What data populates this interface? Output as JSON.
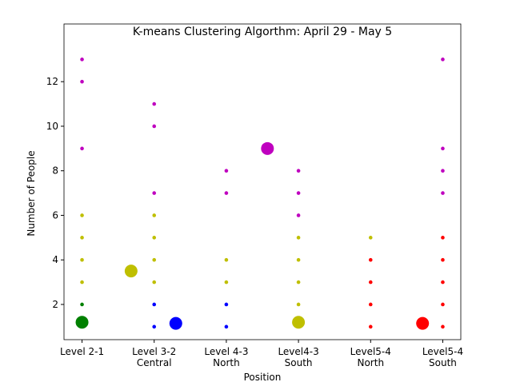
{
  "chart_data": {
    "type": "scatter",
    "title": "K-means Clustering Algorthm: April 29 - May 5",
    "x_label": "Position",
    "y_label": "Number of People",
    "xlim": [
      -0.25,
      5.25
    ],
    "ylim": [
      0.42,
      14.59
    ],
    "xticks": [
      {
        "value": 0,
        "label": "Level 2-1"
      },
      {
        "value": 1,
        "label": "Level 3-2\nCentral"
      },
      {
        "value": 2,
        "label": "Level 4-3\nNorth"
      },
      {
        "value": 3,
        "label": "Level4-3\nSouth"
      },
      {
        "value": 4,
        "label": "Level5-4\nNorth"
      },
      {
        "value": 5,
        "label": "Level5-4\nSouth"
      }
    ],
    "yticks": [
      2,
      4,
      6,
      8,
      10,
      12
    ],
    "series": [
      {
        "color": "#bf00bf",
        "x": [
          0,
          0,
          0,
          1,
          1,
          1,
          2,
          2,
          3,
          3,
          3,
          5,
          5,
          5,
          5
        ],
        "values": [
          13,
          12,
          9,
          11,
          10,
          7,
          8,
          7,
          8,
          7,
          6,
          13,
          9,
          8,
          7
        ]
      },
      {
        "color": "#bfbf00",
        "x": [
          0,
          0,
          0,
          0,
          1,
          1,
          1,
          1,
          2,
          2,
          3,
          3,
          3,
          3,
          4
        ],
        "values": [
          6,
          5,
          4,
          3,
          6,
          5,
          4,
          3,
          4,
          3,
          5,
          4,
          3,
          2,
          5
        ]
      },
      {
        "color": "#008000",
        "x": [
          0
        ],
        "values": [
          2
        ]
      },
      {
        "color": "#0000ff",
        "x": [
          1,
          1,
          2,
          2
        ],
        "values": [
          2,
          1,
          2,
          1
        ]
      },
      {
        "color": "#ff0000",
        "x": [
          4,
          4,
          4,
          4,
          5,
          5,
          5,
          5,
          5
        ],
        "values": [
          4,
          3,
          2,
          1,
          5,
          4,
          3,
          2,
          1
        ]
      }
    ],
    "centroids": {
      "x": [
        0,
        0.68,
        1.3,
        2.57,
        3.0,
        4.72
      ],
      "values": [
        1.2,
        3.5,
        1.15,
        9,
        1.2,
        1.15
      ],
      "colors": [
        "#008000",
        "#bfbf00",
        "#0000ff",
        "#bf00bf",
        "#bfbf00",
        "#ff0000"
      ]
    }
  }
}
